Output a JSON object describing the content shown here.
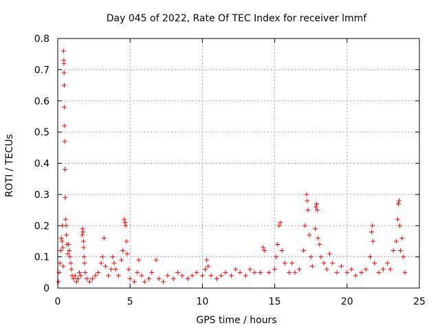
{
  "chart_data": {
    "type": "scatter",
    "title": "Day 045 of 2022, Rate Of TEC Index for receiver lmmf",
    "xlabel": "GPS time / hours",
    "ylabel": "ROTI / TECUs",
    "xlim": [
      0,
      25
    ],
    "ylim": [
      0,
      0.8
    ],
    "xticks": [
      0,
      5,
      10,
      15,
      20,
      25
    ],
    "yticks": [
      0,
      0.1,
      0.2,
      0.3,
      0.4,
      0.5,
      0.6,
      0.7,
      0.8
    ],
    "xtick_labels": [
      "0",
      "5",
      "10",
      "15",
      "20",
      "25"
    ],
    "ytick_labels": [
      "0",
      "0.1",
      "0.2",
      "0.3",
      "0.4",
      "0.5",
      "0.6",
      "0.7",
      "0.8"
    ],
    "grid": true,
    "marker": "+",
    "color": "#ff0000",
    "series": [
      {
        "points": [
          [
            0.05,
            0.02
          ],
          [
            0.1,
            0.05
          ],
          [
            0.15,
            0.08
          ],
          [
            0.2,
            0.12
          ],
          [
            0.25,
            0.16
          ],
          [
            0.3,
            0.15
          ],
          [
            0.32,
            0.2
          ],
          [
            0.35,
            0.13
          ],
          [
            0.38,
            0.07
          ],
          [
            0.4,
            0.76
          ],
          [
            0.42,
            0.73
          ],
          [
            0.43,
            0.72
          ],
          [
            0.44,
            0.69
          ],
          [
            0.45,
            0.65
          ],
          [
            0.46,
            0.58
          ],
          [
            0.47,
            0.52
          ],
          [
            0.48,
            0.47
          ],
          [
            0.5,
            0.38
          ],
          [
            0.52,
            0.29
          ],
          [
            0.55,
            0.22
          ],
          [
            0.58,
            0.2
          ],
          [
            0.6,
            0.17
          ],
          [
            0.65,
            0.14
          ],
          [
            0.7,
            0.11
          ],
          [
            0.75,
            0.14
          ],
          [
            0.8,
            0.12
          ],
          [
            0.85,
            0.1
          ],
          [
            0.9,
            0.08
          ],
          [
            0.95,
            0.06
          ],
          [
            1.0,
            0.04
          ],
          [
            1.1,
            0.03
          ],
          [
            1.2,
            0.04
          ],
          [
            1.3,
            0.02
          ],
          [
            1.4,
            0.03
          ],
          [
            1.5,
            0.05
          ],
          [
            1.6,
            0.04
          ],
          [
            1.7,
            0.17
          ],
          [
            1.72,
            0.19
          ],
          [
            1.75,
            0.18
          ],
          [
            1.78,
            0.15
          ],
          [
            1.8,
            0.13
          ],
          [
            1.82,
            0.1
          ],
          [
            1.85,
            0.08
          ],
          [
            1.9,
            0.05
          ],
          [
            2.0,
            0.03
          ],
          [
            2.2,
            0.02
          ],
          [
            2.4,
            0.03
          ],
          [
            2.6,
            0.04
          ],
          [
            2.8,
            0.05
          ],
          [
            3.0,
            0.08
          ],
          [
            3.1,
            0.1
          ],
          [
            3.2,
            0.16
          ],
          [
            3.3,
            0.07
          ],
          [
            3.5,
            0.04
          ],
          [
            3.7,
            0.06
          ],
          [
            3.8,
            0.1
          ],
          [
            3.9,
            0.08
          ],
          [
            4.0,
            0.06
          ],
          [
            4.2,
            0.04
          ],
          [
            4.4,
            0.09
          ],
          [
            4.5,
            0.12
          ],
          [
            4.6,
            0.22
          ],
          [
            4.65,
            0.21
          ],
          [
            4.7,
            0.2
          ],
          [
            4.75,
            0.15
          ],
          [
            4.8,
            0.11
          ],
          [
            4.9,
            0.06
          ],
          [
            5.0,
            0.03
          ],
          [
            5.3,
            0.02
          ],
          [
            5.5,
            0.05
          ],
          [
            5.6,
            0.09
          ],
          [
            5.8,
            0.04
          ],
          [
            6.0,
            0.02
          ],
          [
            6.3,
            0.03
          ],
          [
            6.5,
            0.05
          ],
          [
            6.8,
            0.09
          ],
          [
            7.0,
            0.03
          ],
          [
            7.3,
            0.02
          ],
          [
            7.6,
            0.04
          ],
          [
            8.0,
            0.03
          ],
          [
            8.3,
            0.05
          ],
          [
            8.6,
            0.04
          ],
          [
            9.0,
            0.03
          ],
          [
            9.3,
            0.04
          ],
          [
            9.6,
            0.05
          ],
          [
            10.0,
            0.04
          ],
          [
            10.2,
            0.06
          ],
          [
            10.3,
            0.09
          ],
          [
            10.4,
            0.07
          ],
          [
            10.6,
            0.04
          ],
          [
            11.0,
            0.03
          ],
          [
            11.3,
            0.04
          ],
          [
            11.6,
            0.05
          ],
          [
            12.0,
            0.04
          ],
          [
            12.3,
            0.06
          ],
          [
            12.6,
            0.05
          ],
          [
            13.0,
            0.04
          ],
          [
            13.3,
            0.06
          ],
          [
            13.6,
            0.05
          ],
          [
            14.0,
            0.05
          ],
          [
            14.2,
            0.13
          ],
          [
            14.3,
            0.12
          ],
          [
            14.6,
            0.05
          ],
          [
            15.0,
            0.06
          ],
          [
            15.1,
            0.1
          ],
          [
            15.2,
            0.14
          ],
          [
            15.3,
            0.2
          ],
          [
            15.4,
            0.21
          ],
          [
            15.5,
            0.12
          ],
          [
            15.7,
            0.08
          ],
          [
            16.0,
            0.05
          ],
          [
            16.2,
            0.08
          ],
          [
            16.4,
            0.05
          ],
          [
            16.7,
            0.06
          ],
          [
            17.0,
            0.12
          ],
          [
            17.1,
            0.2
          ],
          [
            17.2,
            0.3
          ],
          [
            17.25,
            0.28
          ],
          [
            17.3,
            0.25
          ],
          [
            17.4,
            0.17
          ],
          [
            17.5,
            0.1
          ],
          [
            17.6,
            0.07
          ],
          [
            17.8,
            0.19
          ],
          [
            17.85,
            0.26
          ],
          [
            17.9,
            0.27
          ],
          [
            17.95,
            0.25
          ],
          [
            18.0,
            0.16
          ],
          [
            18.1,
            0.14
          ],
          [
            18.2,
            0.1
          ],
          [
            18.4,
            0.08
          ],
          [
            18.6,
            0.06
          ],
          [
            18.8,
            0.11
          ],
          [
            19.0,
            0.08
          ],
          [
            19.3,
            0.05
          ],
          [
            19.6,
            0.07
          ],
          [
            20.0,
            0.05
          ],
          [
            20.3,
            0.06
          ],
          [
            20.6,
            0.04
          ],
          [
            21.0,
            0.05
          ],
          [
            21.3,
            0.06
          ],
          [
            21.6,
            0.1
          ],
          [
            21.7,
            0.18
          ],
          [
            21.75,
            0.2
          ],
          [
            21.8,
            0.15
          ],
          [
            21.9,
            0.08
          ],
          [
            22.2,
            0.05
          ],
          [
            22.5,
            0.06
          ],
          [
            22.8,
            0.08
          ],
          [
            23.0,
            0.06
          ],
          [
            23.2,
            0.12
          ],
          [
            23.4,
            0.15
          ],
          [
            23.5,
            0.22
          ],
          [
            23.55,
            0.27
          ],
          [
            23.6,
            0.28
          ],
          [
            23.65,
            0.2
          ],
          [
            23.7,
            0.12
          ],
          [
            23.8,
            0.16
          ],
          [
            23.9,
            0.1
          ],
          [
            24.0,
            0.05
          ]
        ]
      }
    ]
  }
}
